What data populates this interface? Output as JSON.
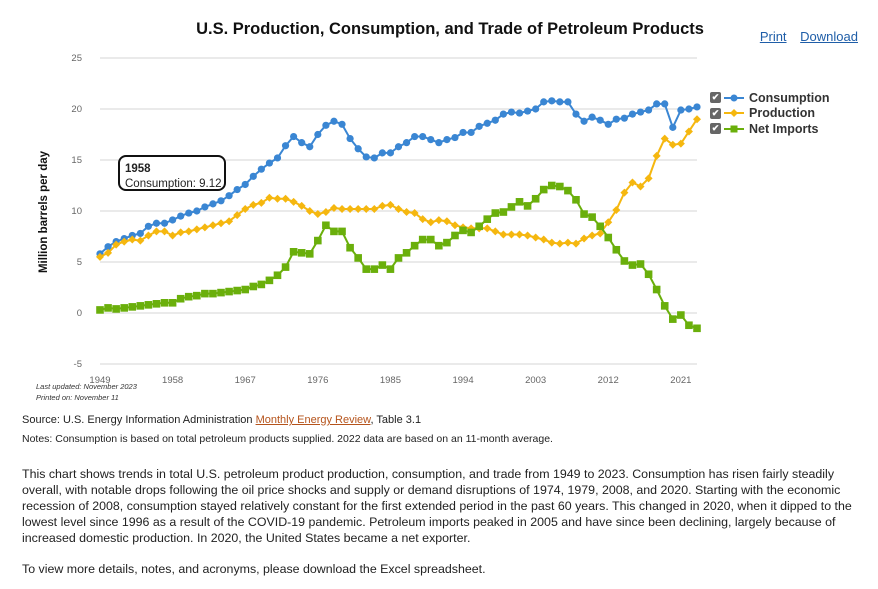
{
  "header": {
    "title": "U.S. Production, Consumption, and Trade of Petroleum Products",
    "print_label": "Print",
    "download_label": "Download"
  },
  "legend": [
    {
      "label": "Consumption",
      "color": "#3a86d3",
      "marker": "circle",
      "checked": true
    },
    {
      "label": "Production",
      "color": "#f5b70f",
      "marker": "diamond",
      "checked": true
    },
    {
      "label": "Net Imports",
      "color": "#6aaf0b",
      "marker": "square",
      "checked": true
    }
  ],
  "tooltip": {
    "year": "1958",
    "text": "Consumption: 9.12"
  },
  "footer": {
    "last_updated": "Last updated: November 2023",
    "printed_on": "Printed on: November 11",
    "source_prefix": "Source: U.S. Energy Information Administration ",
    "source_link": "Monthly Energy Review",
    "source_suffix": ", Table 3.1",
    "notes": "Notes: Consumption is based on total petroleum products supplied. 2022 data are based on an 11-month average."
  },
  "description": "This chart shows trends in total U.S. petroleum product production, consumption, and trade from 1949 to 2023. Consumption has risen fairly steadily overall, with notable drops following the oil price shocks and supply or demand disruptions of 1974, 1979, 2008, and 2020. Starting with the economic recession of 2008, consumption stayed relatively constant for the first extended period in the past 60 years. This changed in 2020, when it dipped to the lowest level since 1996 as a result of the COVID-19 pandemic. Petroleum imports peaked in 2005 and have since been declining, largely because of increased domestic production. In 2020, the United States became a net exporter.",
  "more_info": "To view more details, notes, and acronyms, please download the Excel spreadsheet.",
  "chart_data": {
    "type": "line",
    "title": "U.S. Production, Consumption, and Trade of Petroleum Products",
    "ylabel": "Million barrels per day",
    "xlabel": "",
    "ylim": [
      -5,
      25
    ],
    "xlim": [
      1949,
      2023
    ],
    "yticks": [
      -5,
      0,
      5,
      10,
      15,
      20,
      25
    ],
    "xticks": [
      1949,
      1958,
      1967,
      1976,
      1985,
      1994,
      2003,
      2012,
      2021
    ],
    "grid": "horizontal",
    "legend_position": "right",
    "x": [
      1949,
      1950,
      1951,
      1952,
      1953,
      1954,
      1955,
      1956,
      1957,
      1958,
      1959,
      1960,
      1961,
      1962,
      1963,
      1964,
      1965,
      1966,
      1967,
      1968,
      1969,
      1970,
      1971,
      1972,
      1973,
      1974,
      1975,
      1976,
      1977,
      1978,
      1979,
      1980,
      1981,
      1982,
      1983,
      1984,
      1985,
      1986,
      1987,
      1988,
      1989,
      1990,
      1991,
      1992,
      1993,
      1994,
      1995,
      1996,
      1997,
      1998,
      1999,
      2000,
      2001,
      2002,
      2003,
      2004,
      2005,
      2006,
      2007,
      2008,
      2009,
      2010,
      2011,
      2012,
      2013,
      2014,
      2015,
      2016,
      2017,
      2018,
      2019,
      2020,
      2021,
      2022,
      2023
    ],
    "series": [
      {
        "name": "Consumption",
        "color": "#3a86d3",
        "values": [
          5.8,
          6.5,
          7.0,
          7.3,
          7.6,
          7.8,
          8.5,
          8.8,
          8.8,
          9.12,
          9.5,
          9.8,
          10.0,
          10.4,
          10.7,
          11.0,
          11.5,
          12.1,
          12.6,
          13.4,
          14.1,
          14.7,
          15.2,
          16.4,
          17.3,
          16.7,
          16.3,
          17.5,
          18.4,
          18.8,
          18.5,
          17.1,
          16.1,
          15.3,
          15.2,
          15.7,
          15.7,
          16.3,
          16.7,
          17.3,
          17.3,
          17.0,
          16.7,
          17.0,
          17.2,
          17.7,
          17.7,
          18.3,
          18.6,
          18.9,
          19.5,
          19.7,
          19.6,
          19.8,
          20.0,
          20.7,
          20.8,
          20.7,
          20.7,
          19.5,
          18.8,
          19.2,
          18.9,
          18.5,
          19.0,
          19.1,
          19.5,
          19.7,
          19.9,
          20.5,
          20.5,
          18.2,
          19.9,
          20.0,
          20.2
        ]
      },
      {
        "name": "Production",
        "color": "#f5b70f",
        "values": [
          5.5,
          5.9,
          6.7,
          7.0,
          7.2,
          7.1,
          7.6,
          8.0,
          8.0,
          7.6,
          7.9,
          8.0,
          8.2,
          8.4,
          8.6,
          8.8,
          9.0,
          9.6,
          10.2,
          10.6,
          10.8,
          11.3,
          11.2,
          11.2,
          10.9,
          10.5,
          10.0,
          9.7,
          9.9,
          10.3,
          10.2,
          10.2,
          10.2,
          10.2,
          10.2,
          10.5,
          10.6,
          10.2,
          9.9,
          9.8,
          9.2,
          8.9,
          9.1,
          9.0,
          8.6,
          8.4,
          8.3,
          8.3,
          8.3,
          8.0,
          7.7,
          7.7,
          7.7,
          7.6,
          7.4,
          7.2,
          6.9,
          6.8,
          6.9,
          6.8,
          7.3,
          7.6,
          7.8,
          8.9,
          10.1,
          11.8,
          12.8,
          12.4,
          13.2,
          15.4,
          17.1,
          16.5,
          16.6,
          17.8,
          19.0
        ]
      },
      {
        "name": "Net Imports",
        "color": "#6aaf0b",
        "values": [
          0.3,
          0.5,
          0.4,
          0.5,
          0.6,
          0.7,
          0.8,
          0.9,
          1.0,
          1.0,
          1.4,
          1.6,
          1.7,
          1.9,
          1.9,
          2.0,
          2.1,
          2.2,
          2.3,
          2.6,
          2.8,
          3.2,
          3.7,
          4.5,
          6.0,
          5.9,
          5.8,
          7.1,
          8.6,
          8.0,
          8.0,
          6.4,
          5.4,
          4.3,
          4.3,
          4.7,
          4.3,
          5.4,
          5.9,
          6.6,
          7.2,
          7.2,
          6.6,
          6.9,
          7.6,
          8.1,
          7.9,
          8.5,
          9.2,
          9.8,
          9.9,
          10.4,
          10.9,
          10.5,
          11.2,
          12.1,
          12.5,
          12.4,
          12.0,
          11.1,
          9.7,
          9.4,
          8.5,
          7.4,
          6.2,
          5.1,
          4.7,
          4.8,
          3.8,
          2.3,
          0.7,
          -0.6,
          -0.2,
          -1.2,
          -1.5
        ]
      }
    ]
  }
}
